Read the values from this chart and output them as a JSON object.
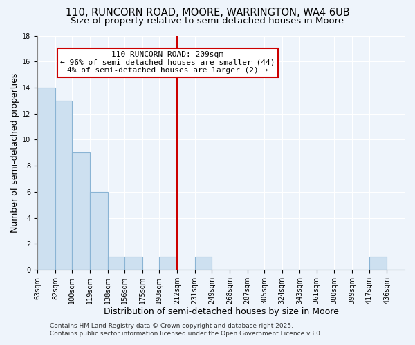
{
  "title": "110, RUNCORN ROAD, MOORE, WARRINGTON, WA4 6UB",
  "subtitle": "Size of property relative to semi-detached houses in Moore",
  "xlabel": "Distribution of semi-detached houses by size in Moore",
  "ylabel": "Number of semi-detached properties",
  "bar_color": "#cde0f0",
  "bar_edge_color": "#8ab4d4",
  "background_color": "#eef4fb",
  "grid_color": "#ffffff",
  "vline_x": 212,
  "vline_color": "#cc0000",
  "annotation_title": "110 RUNCORN ROAD: 209sqm",
  "annotation_line1": "← 96% of semi-detached houses are smaller (44)",
  "annotation_line2": "4% of semi-detached houses are larger (2) →",
  "annotation_box_color": "#ffffff",
  "annotation_box_edge": "#cc0000",
  "bin_edges": [
    63,
    82,
    100,
    119,
    138,
    156,
    175,
    193,
    212,
    231,
    249,
    268,
    287,
    305,
    324,
    343,
    361,
    380,
    399,
    417,
    436,
    455
  ],
  "bin_counts": [
    14,
    13,
    9,
    6,
    1,
    1,
    0,
    1,
    0,
    1,
    0,
    0,
    0,
    0,
    0,
    0,
    0,
    0,
    0,
    1,
    0
  ],
  "tick_labels": [
    "63sqm",
    "82sqm",
    "100sqm",
    "119sqm",
    "138sqm",
    "156sqm",
    "175sqm",
    "193sqm",
    "212sqm",
    "231sqm",
    "249sqm",
    "268sqm",
    "287sqm",
    "305sqm",
    "324sqm",
    "343sqm",
    "361sqm",
    "380sqm",
    "399sqm",
    "417sqm",
    "436sqm"
  ],
  "ylim": [
    0,
    18
  ],
  "yticks": [
    0,
    2,
    4,
    6,
    8,
    10,
    12,
    14,
    16,
    18
  ],
  "footer_line1": "Contains HM Land Registry data © Crown copyright and database right 2025.",
  "footer_line2": "Contains public sector information licensed under the Open Government Licence v3.0.",
  "title_fontsize": 10.5,
  "subtitle_fontsize": 9.5,
  "axis_label_fontsize": 9,
  "tick_fontsize": 7,
  "annotation_fontsize": 8,
  "footer_fontsize": 6.5
}
